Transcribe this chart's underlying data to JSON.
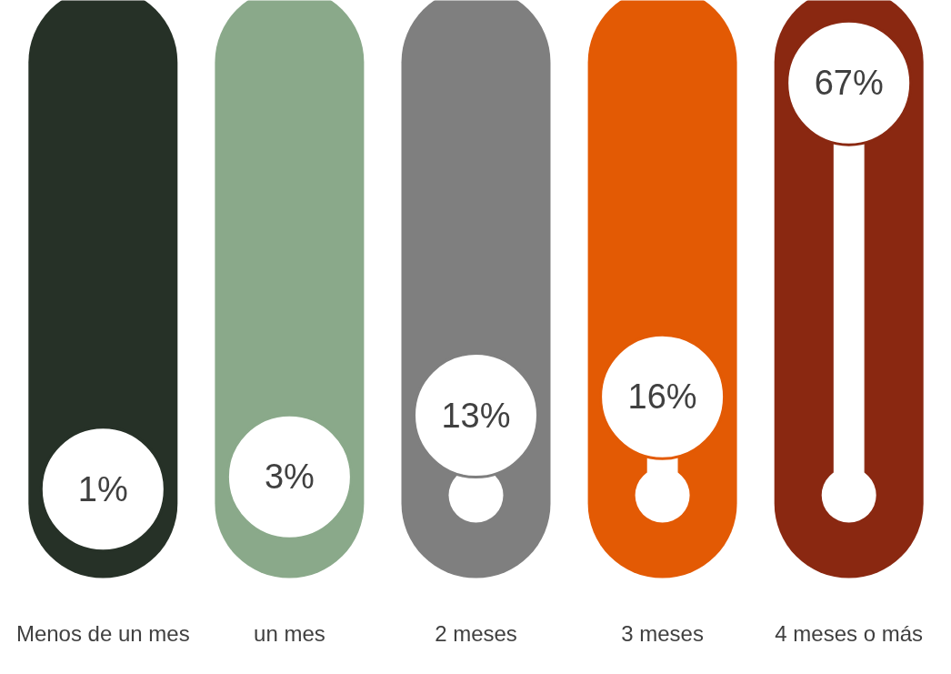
{
  "chart_data": {
    "type": "other",
    "categories": [
      "Menos de un mes",
      "un mes",
      "2 meses",
      "3 meses",
      "4 meses o más"
    ],
    "values": [
      1,
      3,
      13,
      16,
      67
    ],
    "colors": [
      "#263127",
      "#8aa98a",
      "#7f7f7f",
      "#e35a04",
      "#8a2811"
    ],
    "value_labels": [
      "1%",
      "3%",
      "13%",
      "16%",
      "67%"
    ]
  }
}
